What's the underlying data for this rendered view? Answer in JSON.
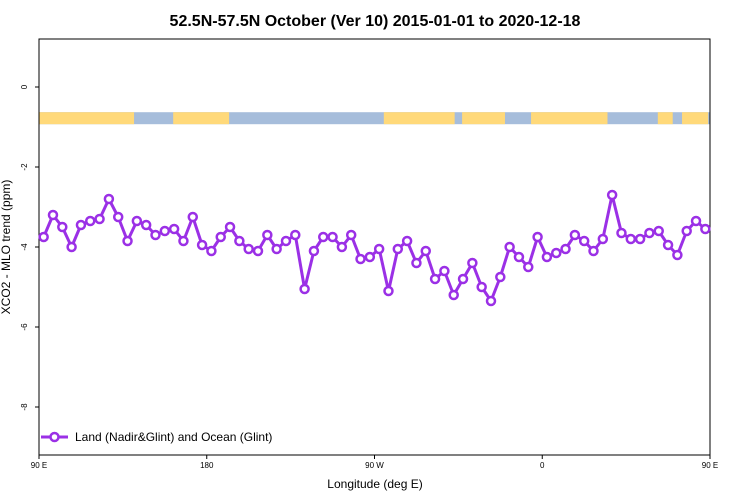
{
  "chart_data": {
    "type": "line",
    "title": "52.5N-57.5N October (Ver 10)   2015-01-01 to 2020-12-18",
    "xlabel": "Longitude (deg E)",
    "ylabel": "XCO2 - MLO trend (ppm)",
    "xlim": [
      90,
      450
    ],
    "ylim": [
      -9.2,
      1.2
    ],
    "x_ticks": [
      {
        "value": 90,
        "label": "90 E"
      },
      {
        "value": 180,
        "label": "180"
      },
      {
        "value": 270,
        "label": "90 W"
      },
      {
        "value": 360,
        "label": "0"
      },
      {
        "value": 450,
        "label": "90 E"
      }
    ],
    "y_ticks": [
      {
        "value": 0,
        "label": "0"
      },
      {
        "value": -2,
        "label": "-2"
      },
      {
        "value": -4,
        "label": "-4"
      },
      {
        "value": -6,
        "label": "-6"
      },
      {
        "value": -8,
        "label": "-8"
      }
    ],
    "surface_strip": {
      "y_value": -0.78,
      "land_color": "#FFD97A",
      "ocean_color": "#A6BDDB",
      "land_ranges": [
        [
          90,
          141
        ],
        [
          162,
          192
        ],
        [
          275,
          313
        ],
        [
          317,
          340
        ],
        [
          354,
          395
        ],
        [
          422,
          430
        ],
        [
          435,
          449
        ]
      ]
    },
    "series": [
      {
        "name": "Land (Nadir&Glint) and Ocean (Glint)",
        "color": "#9B30E6",
        "x": [
          92.5,
          97.5,
          102.5,
          107.5,
          112.5,
          117.5,
          122.5,
          127.5,
          132.5,
          137.5,
          142.5,
          147.5,
          152.5,
          157.5,
          162.5,
          167.5,
          172.5,
          177.5,
          182.5,
          187.5,
          192.5,
          197.5,
          202.5,
          207.5,
          212.5,
          217.5,
          222.5,
          227.5,
          232.5,
          237.5,
          242.5,
          247.5,
          252.5,
          257.5,
          262.5,
          267.5,
          272.5,
          277.5,
          282.5,
          287.5,
          292.5,
          297.5,
          302.5,
          307.5,
          312.5,
          317.5,
          322.5,
          327.5,
          332.5,
          337.5,
          342.5,
          347.5,
          352.5,
          357.5,
          362.5,
          367.5,
          372.5,
          377.5,
          382.5,
          387.5,
          392.5,
          397.5,
          402.5,
          407.5,
          412.5,
          417.5,
          422.5,
          427.5,
          432.5,
          437.5,
          442.5,
          447.5
        ],
        "values": [
          -3.75,
          -3.2,
          -3.5,
          -4.0,
          -3.45,
          -3.35,
          -3.3,
          -2.8,
          -3.25,
          -3.85,
          -3.35,
          -3.45,
          -3.7,
          -3.6,
          -3.55,
          -3.85,
          -3.25,
          -3.95,
          -4.1,
          -3.75,
          -3.5,
          -3.85,
          -4.05,
          -4.1,
          -3.7,
          -4.05,
          -3.85,
          -3.7,
          -5.05,
          -4.1,
          -3.75,
          -3.75,
          -4.0,
          -3.7,
          -4.3,
          -4.25,
          -4.05,
          -5.1,
          -4.05,
          -3.85,
          -4.4,
          -4.1,
          -4.8,
          -4.6,
          -5.2,
          -4.8,
          -4.4,
          -5.0,
          -5.35,
          -4.75,
          -4.0,
          -4.25,
          -4.5,
          -3.75,
          -4.25,
          -4.15,
          -4.05,
          -3.7,
          -3.85,
          -4.1,
          -3.8,
          -2.7,
          -3.65,
          -3.8,
          -3.8,
          -3.65,
          -3.6,
          -3.95,
          -4.2,
          -3.6,
          -3.35,
          -3.55
        ]
      }
    ],
    "legend": {
      "position": "bottom-left",
      "entries": [
        "Land (Nadir&Glint) and Ocean (Glint)"
      ]
    }
  }
}
